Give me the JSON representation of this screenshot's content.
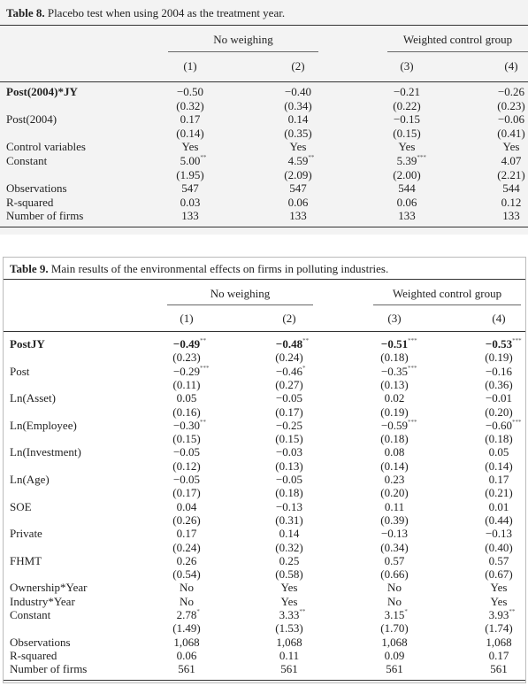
{
  "tables": [
    {
      "caption_label": "Table 8.",
      "caption": "Placebo test when using 2004 as the treatment year.",
      "groups": [
        "No weighing",
        "Weighted control group"
      ],
      "columns": [
        "(1)",
        "(2)",
        "(3)",
        "(4)"
      ],
      "rows": [
        {
          "label": "Post(2004)*JY",
          "bold_label": true,
          "cells": [
            "−0.50",
            "−0.40",
            "−0.21",
            "−0.26"
          ]
        },
        {
          "label": null,
          "cells": [
            "(0.32)",
            "(0.34)",
            "(0.22)",
            "(0.23)"
          ]
        },
        {
          "label": "Post(2004)",
          "cells": [
            "0.17",
            "0.14",
            "−0.15",
            "−0.06"
          ]
        },
        {
          "label": null,
          "cells": [
            "(0.14)",
            "(0.35)",
            "(0.15)",
            "(0.41)"
          ]
        },
        {
          "label": "Control variables",
          "cells": [
            "Yes",
            "Yes",
            "Yes",
            "Yes"
          ]
        },
        {
          "label": "Constant",
          "cells": [
            {
              "text": "5.00",
              "sup": "**"
            },
            {
              "text": "4.59",
              "sup": "**"
            },
            {
              "text": "5.39",
              "sup": "***"
            },
            "4.07"
          ]
        },
        {
          "label": null,
          "cells": [
            "(1.95)",
            "(2.09)",
            "(2.00)",
            "(2.21)"
          ]
        },
        {
          "label": "Observations",
          "cells": [
            "547",
            "547",
            "544",
            "544"
          ]
        },
        {
          "label": "R-squared",
          "cells": [
            "0.03",
            "0.06",
            "0.06",
            "0.12"
          ]
        },
        {
          "label": "Number of firms",
          "cells": [
            "133",
            "133",
            "133",
            "133"
          ]
        }
      ]
    },
    {
      "caption_label": "Table 9.",
      "caption": "Main results of the environmental effects on firms in polluting industries.",
      "groups": [
        "No weighing",
        "Weighted control group"
      ],
      "columns": [
        "(1)",
        "(2)",
        "(3)",
        "(4)"
      ],
      "rows": [
        {
          "label": "PostJY",
          "bold_label": true,
          "bold_values": true,
          "cells": [
            {
              "text": "−0.49",
              "sup": "**"
            },
            {
              "text": "−0.48",
              "sup": "**"
            },
            {
              "text": "−0.51",
              "sup": "***"
            },
            {
              "text": "−0.53",
              "sup": "***"
            }
          ]
        },
        {
          "label": null,
          "cells": [
            "(0.23)",
            "(0.24)",
            "(0.18)",
            "(0.19)"
          ]
        },
        {
          "label": "Post",
          "cells": [
            {
              "text": "−0.29",
              "sup": "***"
            },
            {
              "text": "−0.46",
              "sup": "*"
            },
            {
              "text": "−0.35",
              "sup": "***"
            },
            "−0.16"
          ]
        },
        {
          "label": null,
          "cells": [
            "(0.11)",
            "(0.27)",
            "(0.13)",
            "(0.36)"
          ]
        },
        {
          "label": "Ln(Asset)",
          "cells": [
            "0.05",
            "−0.05",
            "0.02",
            "−0.01"
          ]
        },
        {
          "label": null,
          "cells": [
            "(0.16)",
            "(0.17)",
            "(0.19)",
            "(0.20)"
          ]
        },
        {
          "label": "Ln(Employee)",
          "cells": [
            {
              "text": "−0.30",
              "sup": "**"
            },
            "−0.25",
            {
              "text": "−0.59",
              "sup": "***"
            },
            {
              "text": "−0.60",
              "sup": "***"
            }
          ]
        },
        {
          "label": null,
          "cells": [
            "(0.15)",
            "(0.15)",
            "(0.18)",
            "(0.18)"
          ]
        },
        {
          "label": "Ln(Investment)",
          "cells": [
            "−0.05",
            "−0.03",
            "0.08",
            "0.05"
          ]
        },
        {
          "label": null,
          "cells": [
            "(0.12)",
            "(0.13)",
            "(0.14)",
            "(0.14)"
          ]
        },
        {
          "label": "Ln(Age)",
          "cells": [
            "−0.05",
            "−0.05",
            "0.23",
            "0.17"
          ]
        },
        {
          "label": null,
          "cells": [
            "(0.17)",
            "(0.18)",
            "(0.20)",
            "(0.21)"
          ]
        },
        {
          "label": "SOE",
          "cells": [
            "0.04",
            "−0.13",
            "0.11",
            "0.01"
          ]
        },
        {
          "label": null,
          "cells": [
            "(0.26)",
            "(0.31)",
            "(0.39)",
            "(0.44)"
          ]
        },
        {
          "label": "Private",
          "cells": [
            "0.17",
            "0.14",
            "−0.13",
            "−0.13"
          ]
        },
        {
          "label": null,
          "cells": [
            "(0.24)",
            "(0.32)",
            "(0.34)",
            "(0.40)"
          ]
        },
        {
          "label": "FHMT",
          "cells": [
            "0.26",
            "0.25",
            "0.57",
            "0.57"
          ]
        },
        {
          "label": null,
          "cells": [
            "(0.54)",
            "(0.58)",
            "(0.66)",
            "(0.67)"
          ]
        },
        {
          "label": "Ownership*Year",
          "cells": [
            "No",
            "Yes",
            "No",
            "Yes"
          ]
        },
        {
          "label": "Industry*Year",
          "cells": [
            "No",
            "Yes",
            "No",
            "Yes"
          ]
        },
        {
          "label": "Constant",
          "cells": [
            {
              "text": "2.78",
              "sup": "*"
            },
            {
              "text": "3.33",
              "sup": "**"
            },
            {
              "text": "3.15",
              "sup": "*"
            },
            {
              "text": "3.93",
              "sup": "**"
            }
          ]
        },
        {
          "label": null,
          "cells": [
            "(1.49)",
            "(1.53)",
            "(1.70)",
            "(1.74)"
          ]
        },
        {
          "label": "Observations",
          "cells": [
            "1,068",
            "1,068",
            "1,068",
            "1,068"
          ]
        },
        {
          "label": "R-squared",
          "cells": [
            "0.06",
            "0.11",
            "0.09",
            "0.17"
          ]
        },
        {
          "label": "Number of firms",
          "cells": [
            "561",
            "561",
            "561",
            "561"
          ]
        }
      ]
    }
  ]
}
